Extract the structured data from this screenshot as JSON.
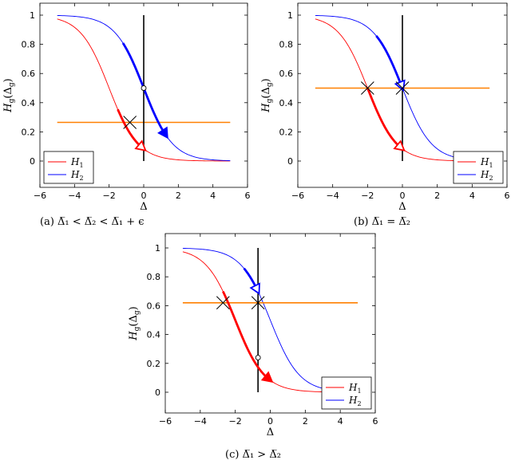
{
  "chart_data": [
    {
      "type": "line",
      "caption": "(a) Δ̅₁ < Δ̅₂ < Δ̅₁ + ϵ",
      "xlabel": "Δ",
      "ylabel": "H_g(Δ_g)",
      "xlim": [
        -6,
        6
      ],
      "ylim": [
        0,
        1
      ],
      "xticks": [
        -6,
        -4,
        -2,
        0,
        2,
        4,
        6
      ],
      "yticks": [
        0,
        0.2,
        0.4,
        0.6,
        0.8,
        1
      ],
      "legend_position": "bottom-left",
      "series": [
        {
          "name": "H1",
          "center": -2,
          "x_range": [
            -5,
            5
          ],
          "color": "#ff0000"
        },
        {
          "name": "H2",
          "center": 0,
          "x_range": [
            -5,
            5
          ],
          "color": "#0000ff"
        }
      ],
      "threshold_y": 0.265,
      "threshold_x_range": [
        -5,
        5
      ],
      "vertical_line_x": 0,
      "crossing_marks": [
        {
          "x": -0.8,
          "y": 0.265
        }
      ],
      "open_circles": [
        {
          "x": 0,
          "y": 0.5
        }
      ],
      "arrows": [
        {
          "series": "H1",
          "from": -1.5,
          "to": 0,
          "style": "open"
        },
        {
          "series": "H2",
          "from": -1.2,
          "to": 1.3,
          "style": "filled"
        }
      ]
    },
    {
      "type": "line",
      "caption": "(b) Δ̅₁ = Δ̅₂",
      "xlabel": "Δ",
      "ylabel": "H_g(Δ_g)",
      "xlim": [
        -6,
        6
      ],
      "ylim": [
        0,
        1
      ],
      "xticks": [
        -6,
        -4,
        -2,
        0,
        2,
        4,
        6
      ],
      "yticks": [
        0,
        0.2,
        0.4,
        0.6,
        0.8,
        1
      ],
      "legend_position": "bottom-right",
      "series": [
        {
          "name": "H1",
          "center": -2,
          "x_range": [
            -5,
            5
          ],
          "color": "#ff0000"
        },
        {
          "name": "H2",
          "center": 0,
          "x_range": [
            -5,
            5
          ],
          "color": "#0000ff"
        }
      ],
      "threshold_y": 0.5,
      "threshold_x_range": [
        -5,
        5
      ],
      "vertical_line_x": 0,
      "crossing_marks": [
        {
          "x": -2,
          "y": 0.5
        },
        {
          "x": 0,
          "y": 0.5
        }
      ],
      "open_circles": [],
      "arrows": [
        {
          "series": "H1",
          "from": -2,
          "to": 0,
          "style": "open"
        },
        {
          "series": "H2",
          "from": -1.5,
          "to": 0,
          "style": "open"
        }
      ]
    },
    {
      "type": "line",
      "caption": "(c) Δ̅₁ > Δ̅₂",
      "xlabel": "Δ",
      "ylabel": "H_g(Δ_g)",
      "xlim": [
        -6,
        6
      ],
      "ylim": [
        0,
        1
      ],
      "xticks": [
        -6,
        -4,
        -2,
        0,
        2,
        4,
        6
      ],
      "yticks": [
        0,
        0.2,
        0.4,
        0.6,
        0.8,
        1
      ],
      "legend_position": "bottom-right",
      "series": [
        {
          "name": "H1",
          "center": -2,
          "x_range": [
            -5,
            5
          ],
          "color": "#ff0000"
        },
        {
          "name": "H2",
          "center": 0,
          "x_range": [
            -5,
            5
          ],
          "color": "#0000ff"
        }
      ],
      "threshold_y": 0.62,
      "threshold_x_range": [
        -5,
        5
      ],
      "vertical_line_x": -0.7,
      "crossing_marks": [
        {
          "x": -2.7,
          "y": 0.62
        },
        {
          "x": -0.7,
          "y": 0.62
        }
      ],
      "open_circles": [
        {
          "x": -0.7,
          "y": 0.24
        }
      ],
      "arrows": [
        {
          "series": "H1",
          "from": -2.7,
          "to": 0,
          "style": "filled"
        },
        {
          "series": "H2",
          "from": -1.5,
          "to": -0.7,
          "style": "open"
        }
      ]
    }
  ]
}
